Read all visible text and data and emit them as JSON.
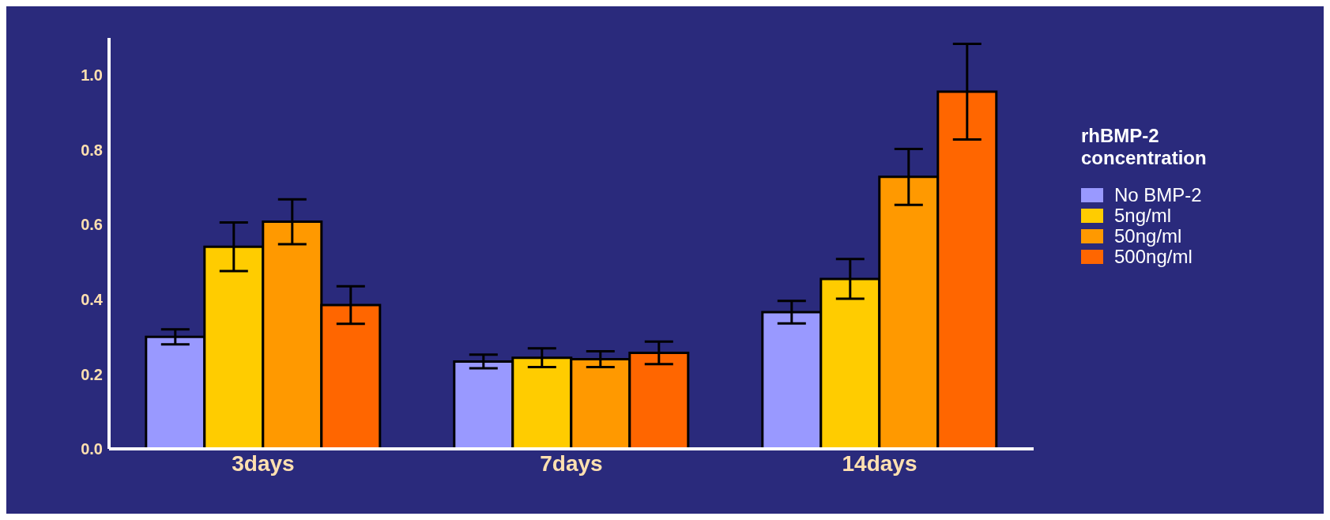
{
  "chart_data": {
    "type": "bar",
    "categories": [
      "3days",
      "7days",
      "14days"
    ],
    "series": [
      {
        "name": "No BMP-2",
        "color": "#9999ff",
        "values": [
          0.3,
          0.234,
          0.366
        ],
        "errors": [
          0.02,
          0.018,
          0.03
        ]
      },
      {
        "name": "5ng/ml",
        "color": "#ffcc00",
        "values": [
          0.541,
          0.244,
          0.455
        ],
        "errors": [
          0.065,
          0.025,
          0.053
        ]
      },
      {
        "name": "50ng/ml",
        "color": "#ff9900",
        "values": [
          0.608,
          0.24,
          0.728
        ],
        "errors": [
          0.06,
          0.021,
          0.075
        ]
      },
      {
        "name": "500ng/ml",
        "color": "#ff6600",
        "values": [
          0.385,
          0.257,
          0.956
        ],
        "errors": [
          0.05,
          0.03,
          0.128
        ]
      }
    ],
    "legend_title": "rhBMP-2 concentration",
    "legend": "right",
    "ylim": [
      0,
      1.1
    ],
    "yticks": [
      {
        "value": 0,
        "label": "0.0"
      },
      0.2,
      0.4,
      0.6,
      0.8,
      {
        "value": 1,
        "label": "1.0"
      }
    ],
    "grid": false
  }
}
